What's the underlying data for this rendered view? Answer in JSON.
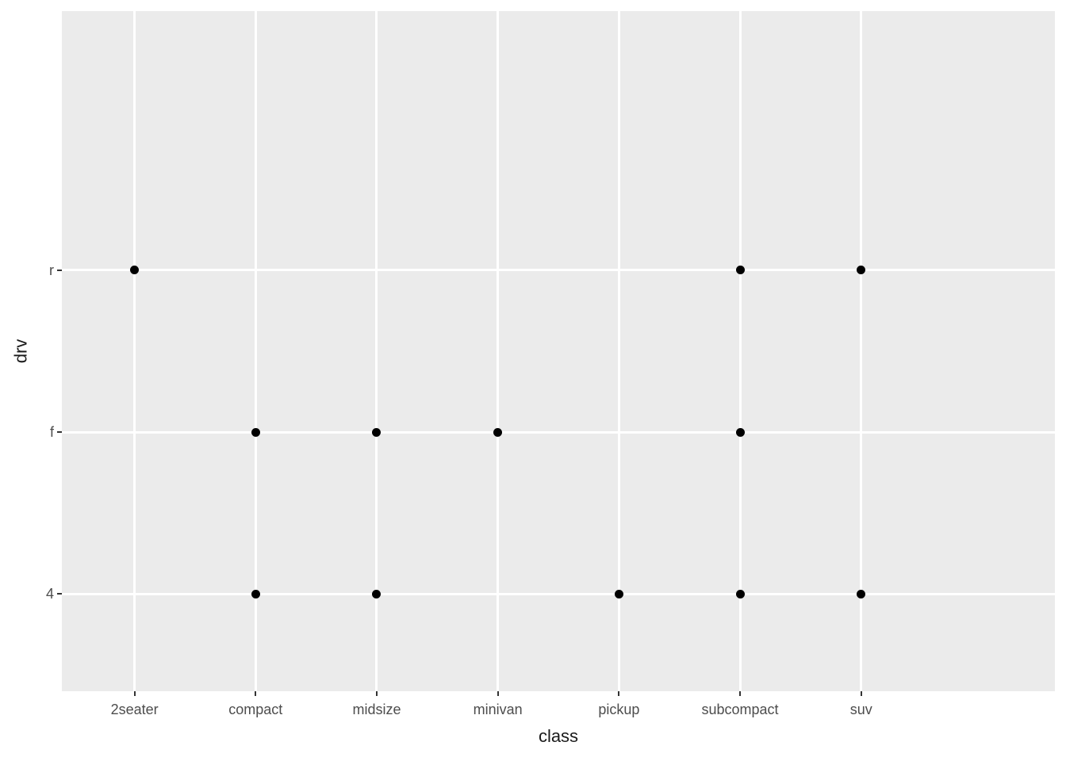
{
  "chart_data": {
    "type": "scatter",
    "title": "",
    "xlabel": "class",
    "ylabel": "drv",
    "x_categories": [
      "2seater",
      "compact",
      "midsize",
      "minivan",
      "pickup",
      "subcompact",
      "suv"
    ],
    "y_categories": [
      "4",
      "f",
      "r"
    ],
    "points": [
      {
        "x": "2seater",
        "y": "r"
      },
      {
        "x": "compact",
        "y": "4"
      },
      {
        "x": "compact",
        "y": "f"
      },
      {
        "x": "midsize",
        "y": "4"
      },
      {
        "x": "midsize",
        "y": "f"
      },
      {
        "x": "minivan",
        "y": "f"
      },
      {
        "x": "pickup",
        "y": "4"
      },
      {
        "x": "subcompact",
        "y": "4"
      },
      {
        "x": "subcompact",
        "y": "f"
      },
      {
        "x": "subcompact",
        "y": "r"
      },
      {
        "x": "suv",
        "y": "4"
      },
      {
        "x": "suv",
        "y": "r"
      }
    ],
    "grid": "major-only",
    "legend_position": "none",
    "axis_ranges": {
      "x_expansion": 0.6,
      "y_expansion": 0.6
    },
    "colors": {
      "panel_background": "#EBEBEB",
      "gridline": "#FFFFFF",
      "point": "#000000",
      "tick_mark": "#333333",
      "tick_label": "#4D4D4D",
      "axis_title": "#1A1A1A",
      "figure_background": "#FFFFFF"
    }
  }
}
